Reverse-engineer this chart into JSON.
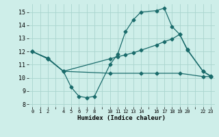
{
  "xlabel": "Humidex (Indice chaleur)",
  "bg_color": "#ceeee9",
  "grid_color": "#aad4ce",
  "line_color": "#1a6b6b",
  "xlim": [
    -0.5,
    23.5
  ],
  "ylim": [
    7.8,
    15.6
  ],
  "yticks": [
    8,
    9,
    10,
    11,
    12,
    13,
    14,
    15
  ],
  "xticks": [
    0,
    1,
    2,
    3,
    4,
    5,
    6,
    7,
    8,
    9,
    10,
    11,
    12,
    13,
    14,
    15,
    16,
    17,
    18,
    19,
    20,
    21,
    22,
    23
  ],
  "xtick_show": [
    0,
    1,
    2,
    4,
    5,
    6,
    7,
    8,
    10,
    11,
    12,
    13,
    14,
    16,
    17,
    18,
    19,
    20,
    22,
    23
  ],
  "line1_x": [
    0,
    2,
    4,
    5,
    6,
    7,
    8,
    10,
    11,
    12,
    13,
    14,
    16,
    17,
    18,
    19,
    20,
    22,
    23
  ],
  "line1_y": [
    12.0,
    11.5,
    10.5,
    9.3,
    8.6,
    8.5,
    8.6,
    11.0,
    11.8,
    13.5,
    14.4,
    15.0,
    15.1,
    15.3,
    13.9,
    13.3,
    12.1,
    10.5,
    10.15
  ],
  "line2_x": [
    0,
    2,
    4,
    10,
    11,
    12,
    13,
    14,
    16,
    17,
    18,
    19,
    20,
    22,
    23
  ],
  "line2_y": [
    12.0,
    11.45,
    10.5,
    11.45,
    11.6,
    11.75,
    11.9,
    12.1,
    12.5,
    12.75,
    12.95,
    13.3,
    12.15,
    10.5,
    10.1
  ],
  "line3_x": [
    0,
    2,
    4,
    10,
    14,
    16,
    19,
    22,
    23
  ],
  "line3_y": [
    12.0,
    11.45,
    10.5,
    10.35,
    10.35,
    10.35,
    10.35,
    10.1,
    10.1
  ]
}
